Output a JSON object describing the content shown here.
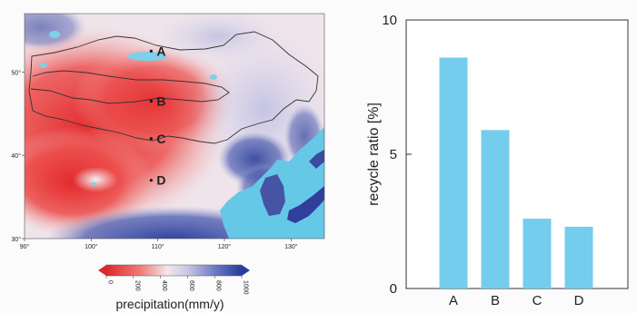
{
  "map_panel": {
    "lat_ticks": [
      "50°",
      "40°",
      "30°"
    ],
    "lon_ticks": [
      "90°",
      "100°",
      "110°",
      "120°",
      "130°"
    ],
    "sites": [
      {
        "label": "A",
        "lon": 109.0,
        "lat": 52.5
      },
      {
        "label": "B",
        "lon": 109.0,
        "lat": 46.5
      },
      {
        "label": "C",
        "lon": 109.0,
        "lat": 42.0
      },
      {
        "label": "D",
        "lon": 109.0,
        "lat": 37.0
      }
    ],
    "colorbar": {
      "label": "precipitation(mm/y)",
      "min": 0,
      "max": 1000,
      "ticks": [
        "0",
        "200",
        "400",
        "600",
        "800",
        "1000"
      ],
      "colors": {
        "low": "#e2262a",
        "mid": "#f3f0f3",
        "high": "#263c9c"
      }
    },
    "colors": {
      "ocean": "#65c8e6",
      "lake": "#6fc9e6",
      "border": "#333333"
    }
  },
  "chart_data": {
    "type": "bar",
    "categories": [
      "A",
      "B",
      "C",
      "D"
    ],
    "values": [
      8.6,
      5.9,
      2.6,
      2.3
    ],
    "ylabel": "recycle ratio [%]",
    "ylim": [
      0,
      10
    ],
    "yticks": [
      0,
      5,
      10
    ],
    "bar_color": "#74cdec"
  }
}
